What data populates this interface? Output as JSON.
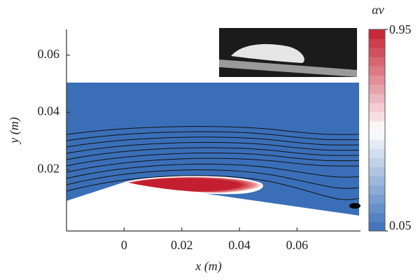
{
  "chart_data": {
    "type": "contour",
    "x_label": "x (m)",
    "y_label": "y (m)",
    "xlim": [
      -0.02,
      0.082
    ],
    "ylim": [
      -0.0015,
      0.069
    ],
    "xticks": [
      0,
      0.02,
      0.04,
      0.06
    ],
    "yticks": [
      0.02,
      0.04,
      0.06
    ],
    "colorbar": {
      "label": "αv",
      "lim": [
        0.05,
        0.95
      ],
      "ticks": [
        0.05,
        0.95
      ],
      "colors": [
        "#3a6fb8",
        "#ffffff",
        "#c41f30"
      ]
    }
  }
}
